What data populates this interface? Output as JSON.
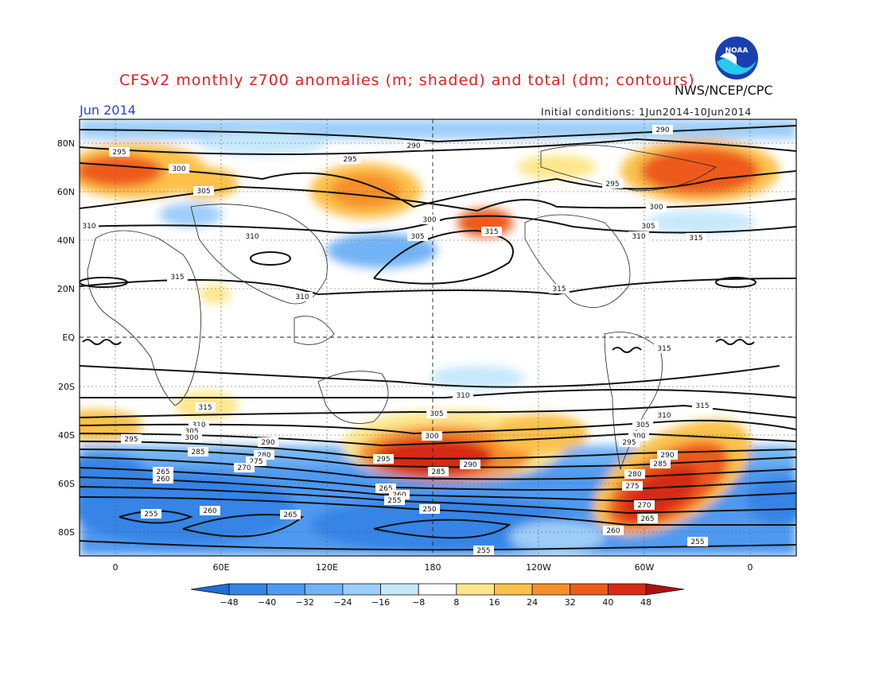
{
  "title": "CFSv2 monthly z700 anomalies (m; shaded) and total (dm; contours)",
  "agency": "NWS/NCEP/CPC",
  "valid_month": "Jun 2014",
  "initial_conditions": "Initial conditions: 1Jun2014-10Jun2014",
  "logo_text": "NOAA",
  "lat_labels": [
    "80N",
    "60N",
    "40N",
    "20N",
    "EQ",
    "20S",
    "40S",
    "60S",
    "80S"
  ],
  "lon_labels": [
    "0",
    "60E",
    "120E",
    "180",
    "120W",
    "60W",
    "0"
  ],
  "colorbar": {
    "ticks": [
      "-48",
      "-40",
      "-32",
      "-24",
      "-16",
      "-8",
      "8",
      "16",
      "24",
      "32",
      "40",
      "48"
    ],
    "colors": [
      "#1e6fd9",
      "#3484e6",
      "#4f9af0",
      "#72b3f5",
      "#9dcdf8",
      "#c5e8fb",
      "#ffffff",
      "#fde68a",
      "#fbc14c",
      "#f7902a",
      "#ee5a1c",
      "#d72b16",
      "#b01010"
    ]
  },
  "contour_labels": [
    "290",
    "295",
    "300",
    "305",
    "310",
    "315",
    "310",
    "305",
    "300",
    "295",
    "290",
    "285",
    "280",
    "275",
    "270",
    "265",
    "260",
    "255",
    "250"
  ],
  "anomaly_colors": {
    "neg1": "#c5e8fb",
    "neg2": "#9dcdf8",
    "neg3": "#72b3f5",
    "neg4": "#4f9af0",
    "neg5": "#3484e6",
    "neg6": "#1e6fd9",
    "pos1": "#fde68a",
    "pos2": "#fbc14c",
    "pos3": "#f7902a",
    "pos4": "#ee5a1c",
    "pos5": "#d72b16",
    "pos6": "#b01010"
  }
}
